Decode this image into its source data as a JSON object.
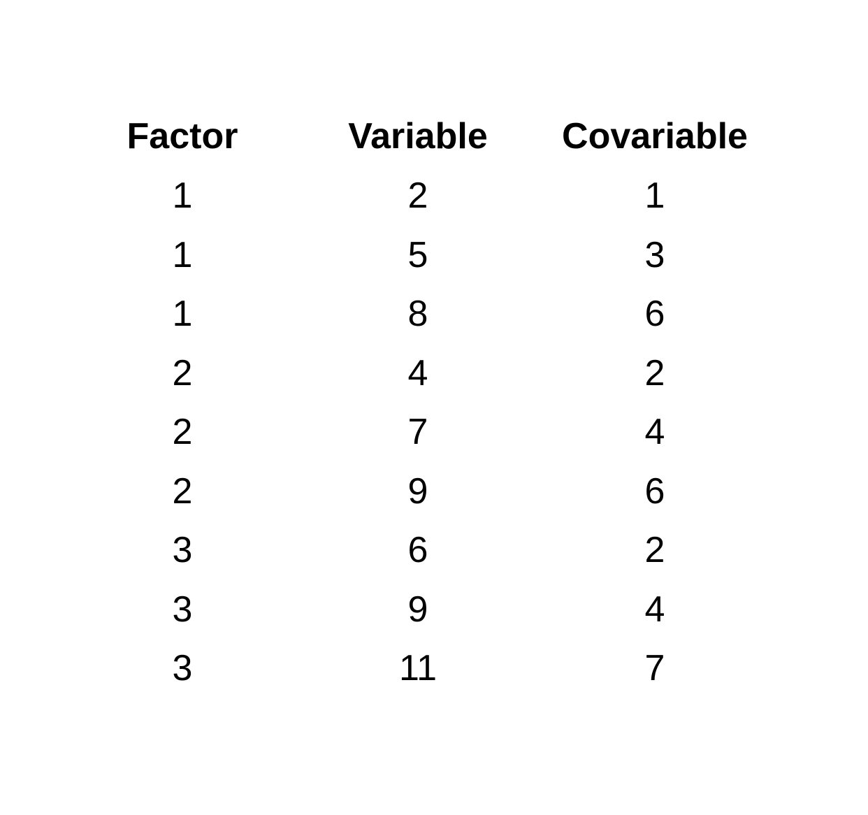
{
  "table": {
    "headers": [
      "Factor",
      "Variable",
      "Covariable"
    ],
    "rows": [
      [
        "1",
        "2",
        "1"
      ],
      [
        "1",
        "5",
        "3"
      ],
      [
        "1",
        "8",
        "6"
      ],
      [
        "2",
        "4",
        "2"
      ],
      [
        "2",
        "7",
        "4"
      ],
      [
        "2",
        "9",
        "6"
      ],
      [
        "3",
        "6",
        "2"
      ],
      [
        "3",
        "9",
        "4"
      ],
      [
        "3",
        "11",
        "7"
      ]
    ]
  }
}
